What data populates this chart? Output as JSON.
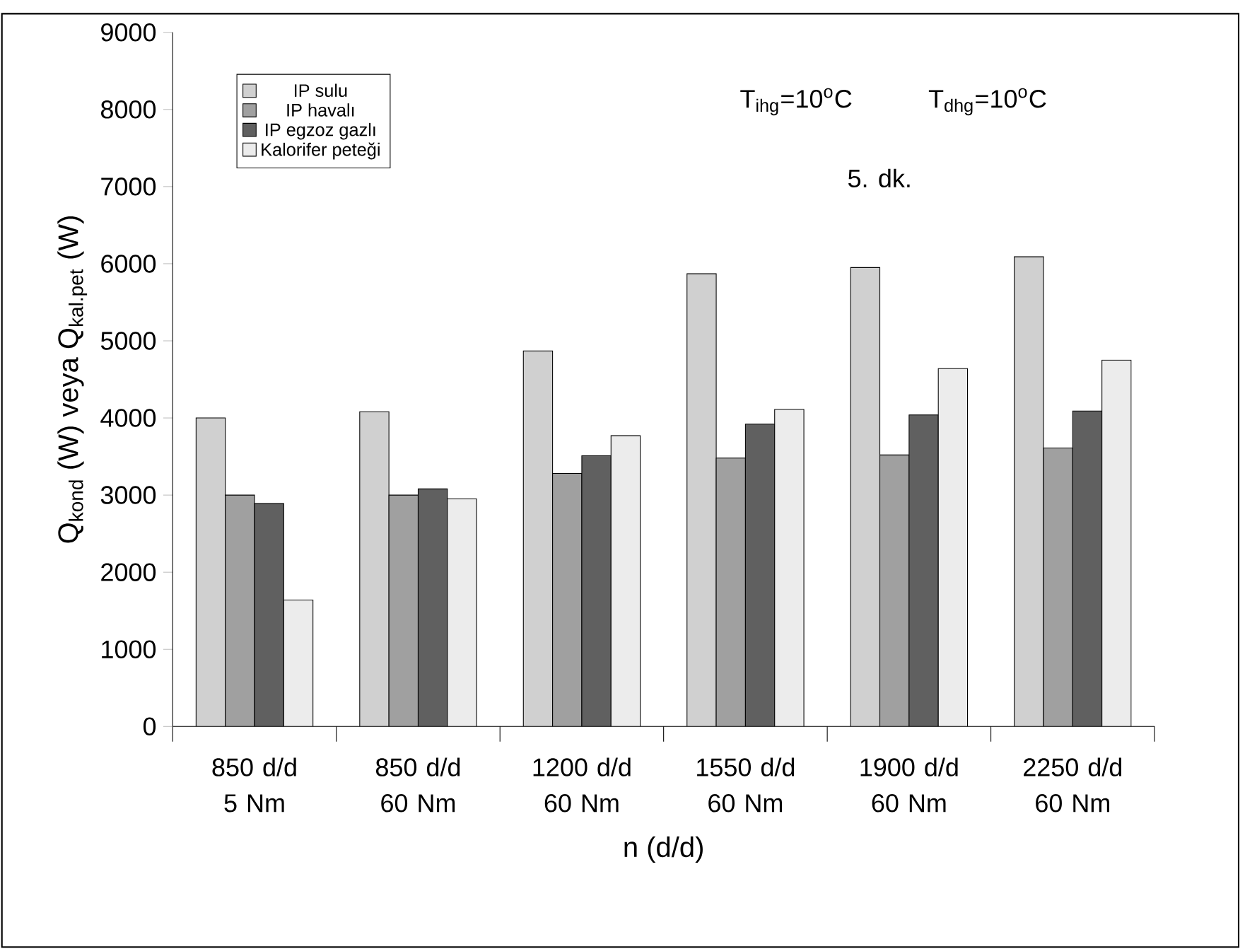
{
  "chart_data": {
    "type": "bar",
    "categories": [
      "850 d/d 5 Nm",
      "850 d/d 60 Nm",
      "1200 d/d 60 Nm",
      "1550 d/d 60 Nm",
      "1900 d/d 60 Nm",
      "2250 d/d 60 Nm"
    ],
    "series": [
      {
        "name": "IP sulu",
        "color": "#d0d0d0",
        "values": [
          4000,
          4080,
          4870,
          5870,
          5950,
          6090
        ]
      },
      {
        "name": "IP havalı",
        "color": "#a0a0a0",
        "values": [
          3000,
          3000,
          3280,
          3480,
          3520,
          3610
        ]
      },
      {
        "name": "IP egzoz gazlı",
        "color": "#606060",
        "values": [
          2890,
          3080,
          3510,
          3920,
          4040,
          4090
        ]
      },
      {
        "name": "Kalorifer peteği",
        "color": "#ececec",
        "values": [
          1640,
          2950,
          3770,
          4110,
          4640,
          4750
        ]
      }
    ],
    "xlabel": "n (d/d)",
    "ylabel": "Q$_{kond}$ (W) veya Q$_{kal.pet}$ (W)",
    "ylim": [
      0,
      9000
    ],
    "yticks": [
      0,
      1000,
      2000,
      3000,
      4000,
      5000,
      6000,
      7000,
      8000,
      9000
    ],
    "annotations": [
      "T$_{ihg}$=10$^{o}$C",
      "T$_{dhg}$=10$^{o}$C",
      "5. dk."
    ],
    "legend": "top left",
    "grid": false
  }
}
